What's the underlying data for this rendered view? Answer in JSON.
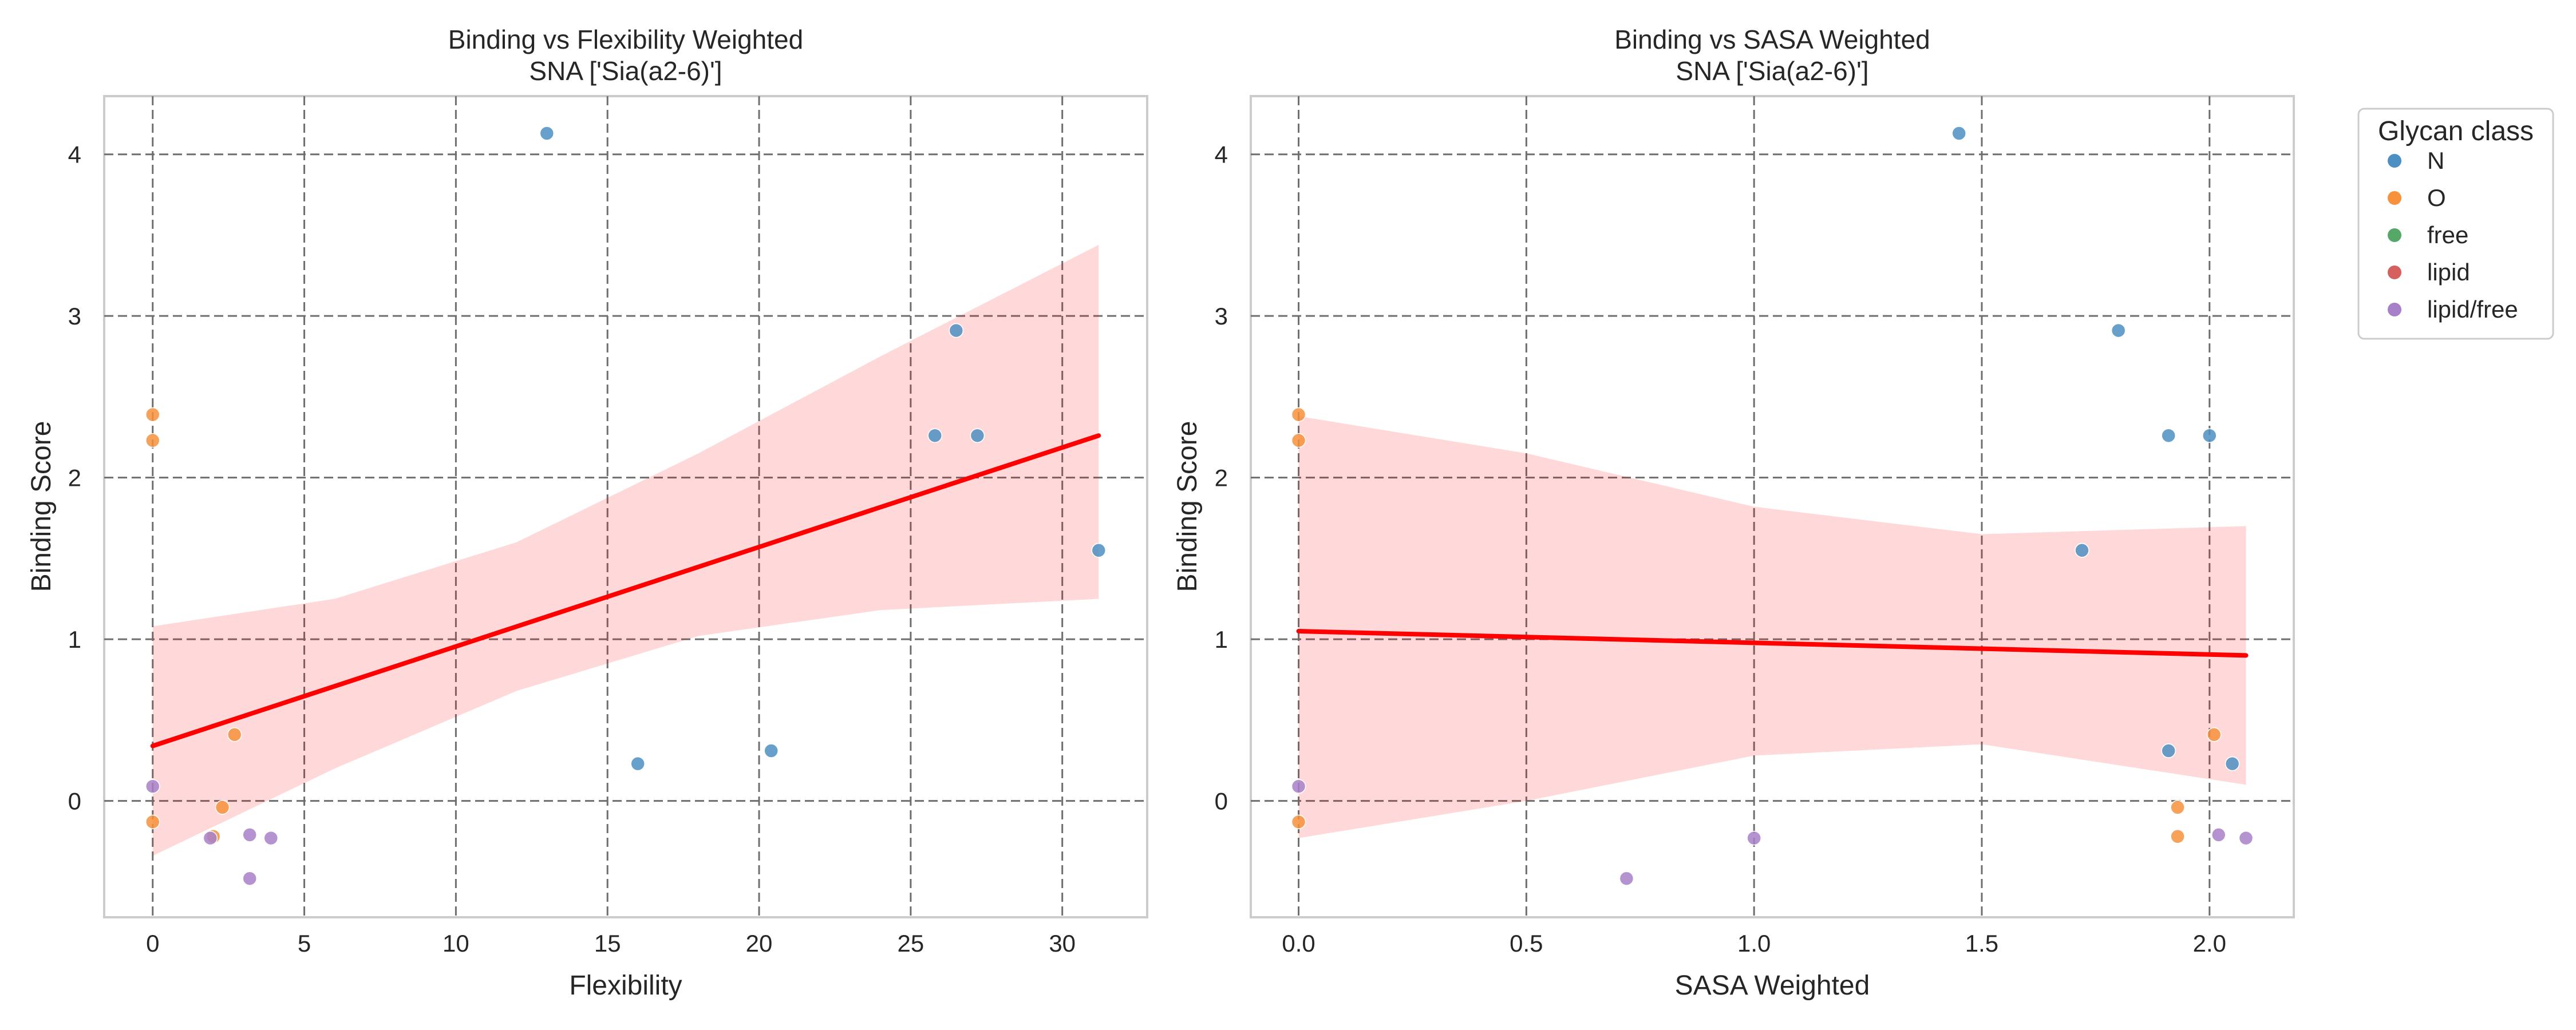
{
  "chart_data": [
    {
      "type": "scatter",
      "title": "Binding vs Flexibility Weighted",
      "subtitle": "SNA ['Sia(a2-6)']",
      "xlabel": "Flexibility",
      "ylabel": "Binding Score",
      "xlim": [
        -1.6,
        32.8
      ],
      "ylim": [
        -0.72,
        4.36
      ],
      "xticks": [
        0,
        5,
        10,
        15,
        20,
        25,
        30
      ],
      "yticks": [
        0,
        1,
        2,
        3,
        4
      ],
      "grid": true,
      "series": [
        {
          "name": "N",
          "color": "#4c8fc2",
          "points": [
            [
              13.0,
              4.13
            ],
            [
              26.5,
              2.91
            ],
            [
              25.8,
              2.26
            ],
            [
              27.2,
              2.26
            ],
            [
              31.2,
              1.55
            ],
            [
              16.0,
              0.23
            ],
            [
              20.4,
              0.31
            ]
          ]
        },
        {
          "name": "O",
          "color": "#f7913b",
          "points": [
            [
              0.0,
              2.39
            ],
            [
              0.0,
              2.23
            ],
            [
              0.0,
              -0.13
            ],
            [
              2.7,
              0.41
            ],
            [
              2.3,
              -0.04
            ],
            [
              2.0,
              -0.22
            ]
          ]
        },
        {
          "name": "free",
          "color": "#55a868",
          "points": []
        },
        {
          "name": "lipid",
          "color": "#d65f5f",
          "points": []
        },
        {
          "name": "lipid/free",
          "color": "#a880c9",
          "points": [
            [
              0.0,
              0.09
            ],
            [
              1.9,
              -0.23
            ],
            [
              3.2,
              -0.21
            ],
            [
              3.9,
              -0.23
            ],
            [
              3.2,
              -0.48
            ]
          ]
        }
      ],
      "regression": {
        "color": "#ff0000",
        "x": [
          0,
          31.2
        ],
        "y": [
          0.34,
          2.26
        ],
        "ci_upper": [
          [
            0,
            1.08
          ],
          [
            6,
            1.25
          ],
          [
            12,
            1.6
          ],
          [
            18,
            2.15
          ],
          [
            24,
            2.75
          ],
          [
            31.2,
            3.44
          ]
        ],
        "ci_lower": [
          [
            0,
            -0.34
          ],
          [
            6,
            0.2
          ],
          [
            12,
            0.68
          ],
          [
            18,
            1.02
          ],
          [
            24,
            1.18
          ],
          [
            31.2,
            1.25
          ]
        ]
      }
    },
    {
      "type": "scatter",
      "title": "Binding vs SASA Weighted",
      "subtitle": "SNA ['Sia(a2-6)']",
      "xlabel": "SASA Weighted",
      "ylabel": "Binding Score",
      "xlim": [
        -0.105,
        2.185
      ],
      "ylim": [
        -0.72,
        4.36
      ],
      "xticks": [
        0.0,
        0.5,
        1.0,
        1.5,
        2.0
      ],
      "yticks": [
        0,
        1,
        2,
        3,
        4
      ],
      "grid": true,
      "series": [
        {
          "name": "N",
          "color": "#4c8fc2",
          "points": [
            [
              1.45,
              4.13
            ],
            [
              1.8,
              2.91
            ],
            [
              1.91,
              2.26
            ],
            [
              2.0,
              2.26
            ],
            [
              1.72,
              1.55
            ],
            [
              1.91,
              0.31
            ],
            [
              2.05,
              0.23
            ]
          ]
        },
        {
          "name": "O",
          "color": "#f7913b",
          "points": [
            [
              0.0,
              2.39
            ],
            [
              0.0,
              2.23
            ],
            [
              0.0,
              -0.13
            ],
            [
              2.01,
              0.41
            ],
            [
              1.93,
              -0.04
            ],
            [
              1.93,
              -0.22
            ]
          ]
        },
        {
          "name": "free",
          "color": "#55a868",
          "points": []
        },
        {
          "name": "lipid",
          "color": "#d65f5f",
          "points": []
        },
        {
          "name": "lipid/free",
          "color": "#a880c9",
          "points": [
            [
              0.0,
              0.09
            ],
            [
              0.72,
              -0.48
            ],
            [
              1.0,
              -0.23
            ],
            [
              2.02,
              -0.21
            ],
            [
              2.08,
              -0.23
            ]
          ]
        }
      ],
      "regression": {
        "color": "#ff0000",
        "x": [
          0,
          2.08
        ],
        "y": [
          1.05,
          0.9
        ],
        "ci_upper": [
          [
            0,
            2.38
          ],
          [
            0.5,
            2.15
          ],
          [
            1.0,
            1.82
          ],
          [
            1.5,
            1.65
          ],
          [
            2.08,
            1.7
          ]
        ],
        "ci_lower": [
          [
            0,
            -0.23
          ],
          [
            0.5,
            0.0
          ],
          [
            1.0,
            0.28
          ],
          [
            1.5,
            0.35
          ],
          [
            2.08,
            0.1
          ]
        ]
      }
    }
  ],
  "legend": {
    "title": "Glycan class",
    "placement": "outside-right",
    "entries": [
      {
        "label": "N",
        "color": "#4c8fc2"
      },
      {
        "label": "O",
        "color": "#f7913b"
      },
      {
        "label": "free",
        "color": "#55a868"
      },
      {
        "label": "lipid",
        "color": "#d65f5f"
      },
      {
        "label": "lipid/free",
        "color": "#a880c9"
      }
    ]
  }
}
